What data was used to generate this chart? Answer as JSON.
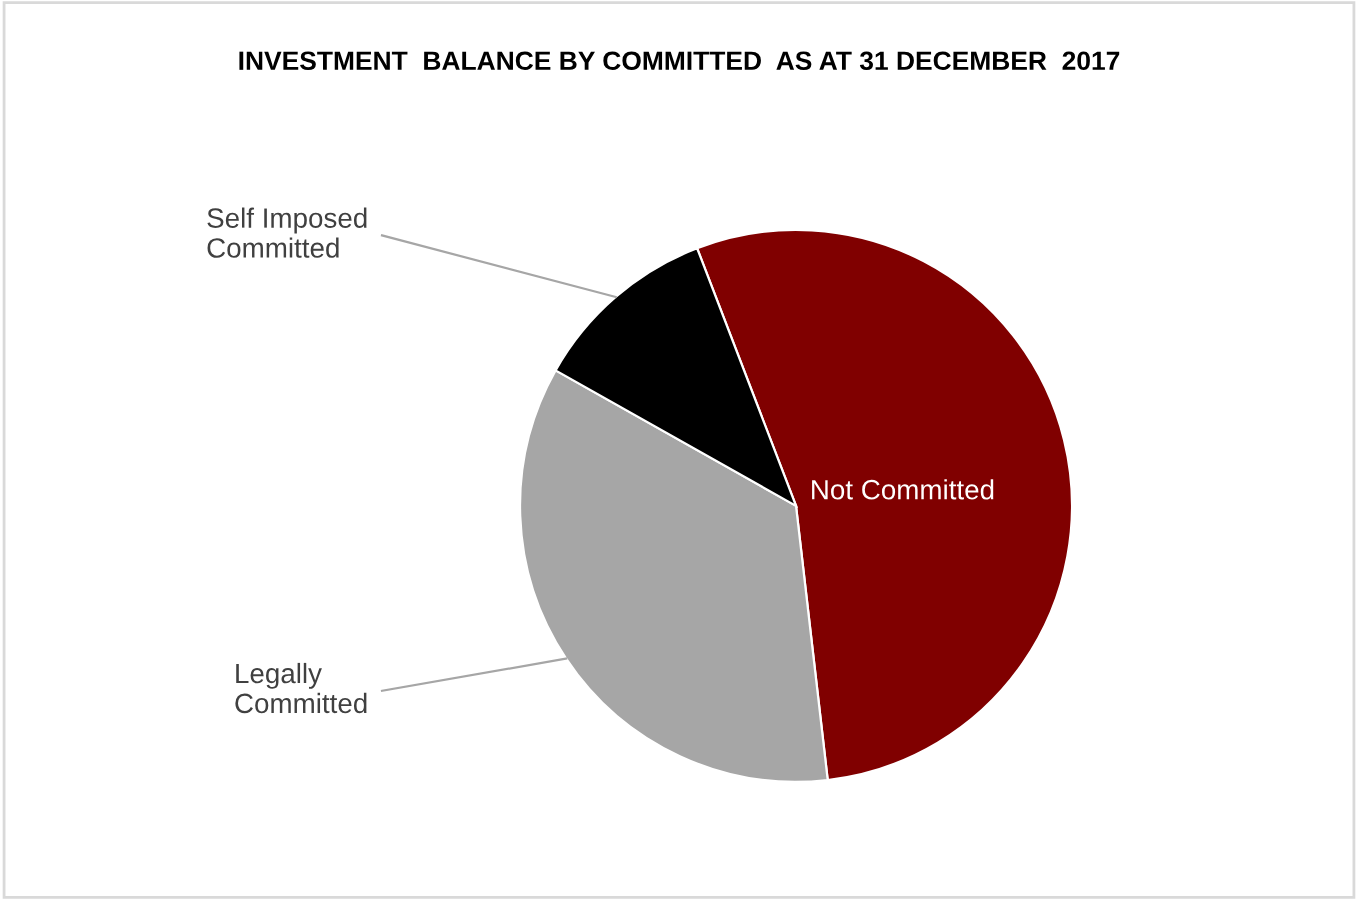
{
  "chart_data": {
    "type": "pie",
    "title": "INVESTMENT  BALANCE BY COMMITTED  AS AT 31 DECEMBER  2017",
    "categories": [
      "Not Committed",
      "Legally\nCommitted",
      "Self Imposed\nCommitted"
    ],
    "values": [
      54,
      35,
      11
    ],
    "colors": [
      "#800000",
      "#a6a6a6",
      "#000000"
    ]
  }
}
